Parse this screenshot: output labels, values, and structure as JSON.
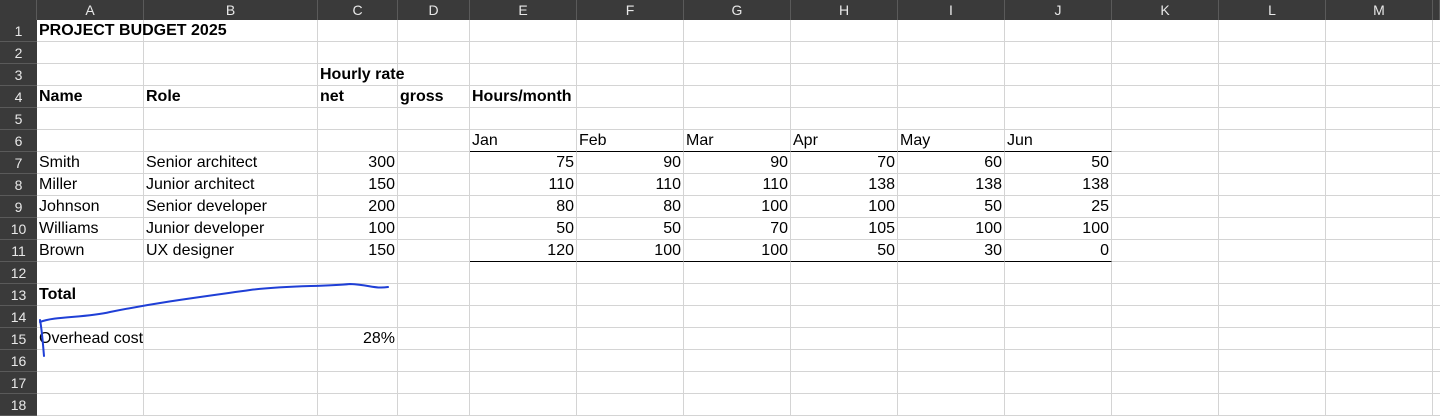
{
  "columns": [
    "A",
    "B",
    "C",
    "D",
    "E",
    "F",
    "G",
    "H",
    "I",
    "J",
    "K",
    "L",
    "M"
  ],
  "rows": [
    "1",
    "2",
    "3",
    "4",
    "5",
    "6",
    "7",
    "8",
    "9",
    "10",
    "11",
    "12",
    "13",
    "14",
    "15",
    "16",
    "17",
    "18"
  ],
  "cells": {
    "A1": "PROJECT BUDGET 2025",
    "C3": "Hourly rate",
    "A4": "Name",
    "B4": "Role",
    "C4": "net",
    "D4": "gross",
    "E4": "Hours/month",
    "E6": "Jan",
    "F6": "Feb",
    "G6": "Mar",
    "H6": "Apr",
    "I6": "May",
    "J6": "Jun",
    "A7": "Smith",
    "B7": "Senior architect",
    "C7": "300",
    "A8": "Miller",
    "B8": "Junior architect",
    "C8": "150",
    "A9": "Johnson",
    "B9": "Senior developer",
    "C9": "200",
    "A10": "Williams",
    "B10": "Junior developer",
    "C10": "100",
    "A11": "Brown",
    "B11": "UX designer",
    "C11": "150",
    "E7": "75",
    "F7": "90",
    "G7": "90",
    "H7": "70",
    "I7": "60",
    "J7": "50",
    "E8": "110",
    "F8": "110",
    "G8": "110",
    "H8": "138",
    "I8": "138",
    "J8": "138",
    "E9": "80",
    "F9": "80",
    "G9": "100",
    "H9": "100",
    "I9": "50",
    "J9": "25",
    "E10": "50",
    "F10": "50",
    "G10": "70",
    "H10": "105",
    "I10": "100",
    "J10": "100",
    "E11": "120",
    "F11": "100",
    "G11": "100",
    "H11": "50",
    "I11": "30",
    "J11": "0",
    "A13": "Total",
    "A15": "Overhead cost",
    "C15": "28%"
  },
  "annotation_color": "#1f3fd6"
}
